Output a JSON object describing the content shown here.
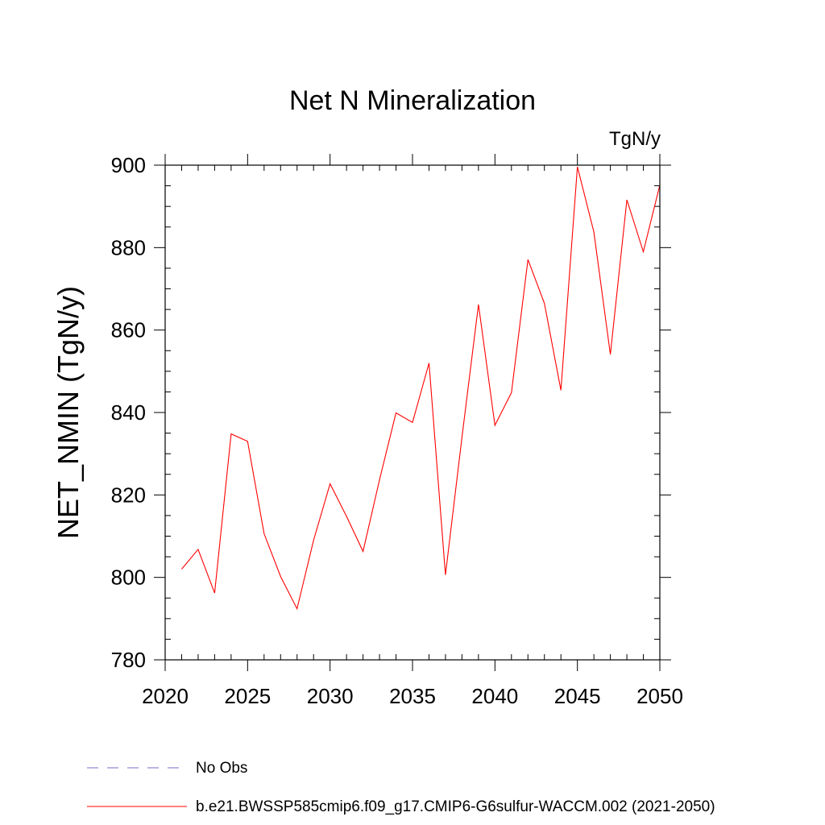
{
  "chart_data": {
    "type": "line",
    "title": "Net N Mineralization",
    "units_label": "TgN/y",
    "ylabel": "NET_NMIN  (TgN/y)",
    "xlabel": "",
    "xlim": [
      2020,
      2050
    ],
    "ylim": [
      780,
      900
    ],
    "x_ticks": [
      2020,
      2025,
      2030,
      2035,
      2040,
      2045,
      2050
    ],
    "y_ticks": [
      780,
      800,
      820,
      840,
      860,
      880,
      900
    ],
    "grid": false,
    "legend": "bottom",
    "series": [
      {
        "name": "b.e21.BWSSP585cmip6.f09_g17.CMIP6-G6sulfur-WACCM.002 (2021-2050)",
        "color": "#ff0000",
        "style": "solid",
        "x": [
          2021,
          2022,
          2023,
          2024,
          2025,
          2026,
          2027,
          2028,
          2029,
          2030,
          2031,
          2032,
          2033,
          2034,
          2035,
          2036,
          2037,
          2038,
          2039,
          2040,
          2041,
          2042,
          2043,
          2044,
          2045,
          2046,
          2047,
          2048,
          2049,
          2050
        ],
        "y": [
          802,
          806.8,
          796.2,
          834.8,
          833,
          810.6,
          800.2,
          792.4,
          809,
          822.7,
          814.8,
          806.3,
          823.7,
          839.9,
          837.6,
          852,
          800.6,
          834,
          866.2,
          836.9,
          844.8,
          877.1,
          866.5,
          845.4,
          899.6,
          883.8,
          854.1,
          891.6,
          879,
          895.2
        ]
      }
    ],
    "legend_entries": [
      {
        "label": "No Obs",
        "color": "#7b68c8",
        "style": "dashed"
      },
      {
        "label": "b.e21.BWSSP585cmip6.f09_g17.CMIP6-G6sulfur-WACCM.002 (2021-2050)",
        "color": "#ff0000",
        "style": "solid"
      }
    ]
  }
}
